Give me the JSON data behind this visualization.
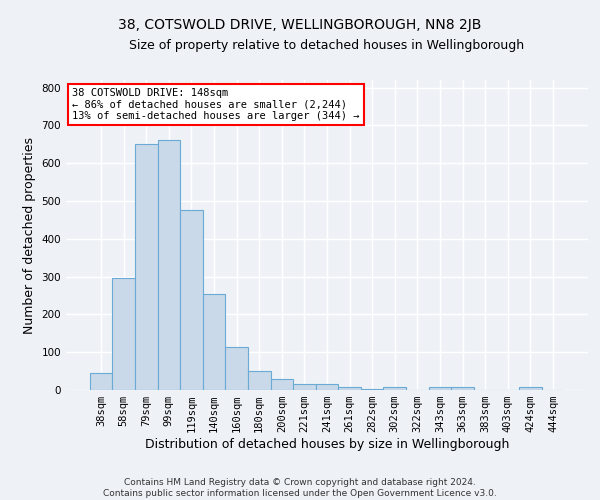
{
  "title": "38, COTSWOLD DRIVE, WELLINGBOROUGH, NN8 2JB",
  "subtitle": "Size of property relative to detached houses in Wellingborough",
  "xlabel": "Distribution of detached houses by size in Wellingborough",
  "ylabel": "Number of detached properties",
  "footer_line1": "Contains HM Land Registry data © Crown copyright and database right 2024.",
  "footer_line2": "Contains public sector information licensed under the Open Government Licence v3.0.",
  "bar_labels": [
    "38sqm",
    "58sqm",
    "79sqm",
    "99sqm",
    "119sqm",
    "140sqm",
    "160sqm",
    "180sqm",
    "200sqm",
    "221sqm",
    "241sqm",
    "261sqm",
    "282sqm",
    "302sqm",
    "322sqm",
    "343sqm",
    "363sqm",
    "383sqm",
    "403sqm",
    "424sqm",
    "444sqm"
  ],
  "bar_values": [
    45,
    295,
    650,
    660,
    475,
    253,
    113,
    50,
    28,
    15,
    15,
    8,
    2,
    8,
    0,
    8,
    8,
    0,
    0,
    8,
    0
  ],
  "bar_color": "#c9d9ea",
  "bar_edgecolor": "#6aaad4",
  "annotation_text_line1": "38 COTSWOLD DRIVE: 148sqm",
  "annotation_text_line2": "← 86% of detached houses are smaller (2,244)",
  "annotation_text_line3": "13% of semi-detached houses are larger (344) →",
  "ylim": [
    0,
    820
  ],
  "yticks": [
    0,
    100,
    200,
    300,
    400,
    500,
    600,
    700,
    800
  ],
  "background_color": "#eef2f7",
  "grid_color": "#ffffff",
  "title_fontsize": 10,
  "subtitle_fontsize": 9,
  "axis_label_fontsize": 9,
  "tick_fontsize": 7.5,
  "footer_fontsize": 6.5,
  "annotation_fontsize": 7.5
}
